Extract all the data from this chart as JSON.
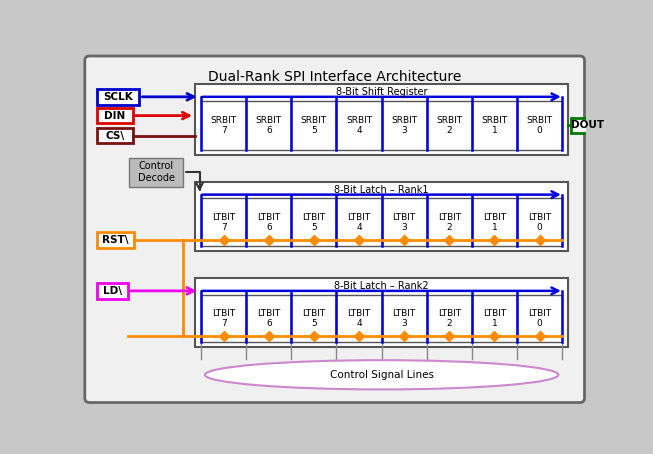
{
  "title": "Dual-Rank SPI Interface Architecture",
  "background_color": "#c8c8c8",
  "inner_bg_color": "#f0f0f0",
  "fig_width": 6.53,
  "fig_height": 4.54,
  "shift_register_label": "8-Bit Shift Register",
  "latch1_label": "8-Bit Latch – Rank1",
  "latch2_label": "8-Bit Latch – Rank2",
  "srbit_labels": [
    "SRBIT\n7",
    "SRBIT\n6",
    "SRBIT\n5",
    "SRBIT\n4",
    "SRBIT\n3",
    "SRBIT\n2",
    "SRBIT\n1",
    "SRBIT\n0"
  ],
  "ltbit_labels": [
    "LTBIT\n7",
    "LTBIT\n6",
    "LTBIT\n5",
    "LTBIT\n4",
    "LTBIT\n3",
    "LTBIT\n2",
    "LTBIT\n1",
    "LTBIT\n0"
  ],
  "signal_colors": [
    "#0000cc",
    "#dd0000",
    "#7b1010",
    "#ff8c00",
    "#ee00ee"
  ],
  "dout_color": "#007700",
  "blue_line_color": "#0000dd",
  "orange_line_color": "#ff8c00",
  "ellipse_color": "#cc88cc",
  "control_decode_bg": "#bbbbbb",
  "outer_border_color": "#666666",
  "cell_border_color": "#555555",
  "block_border_color": "#555555"
}
